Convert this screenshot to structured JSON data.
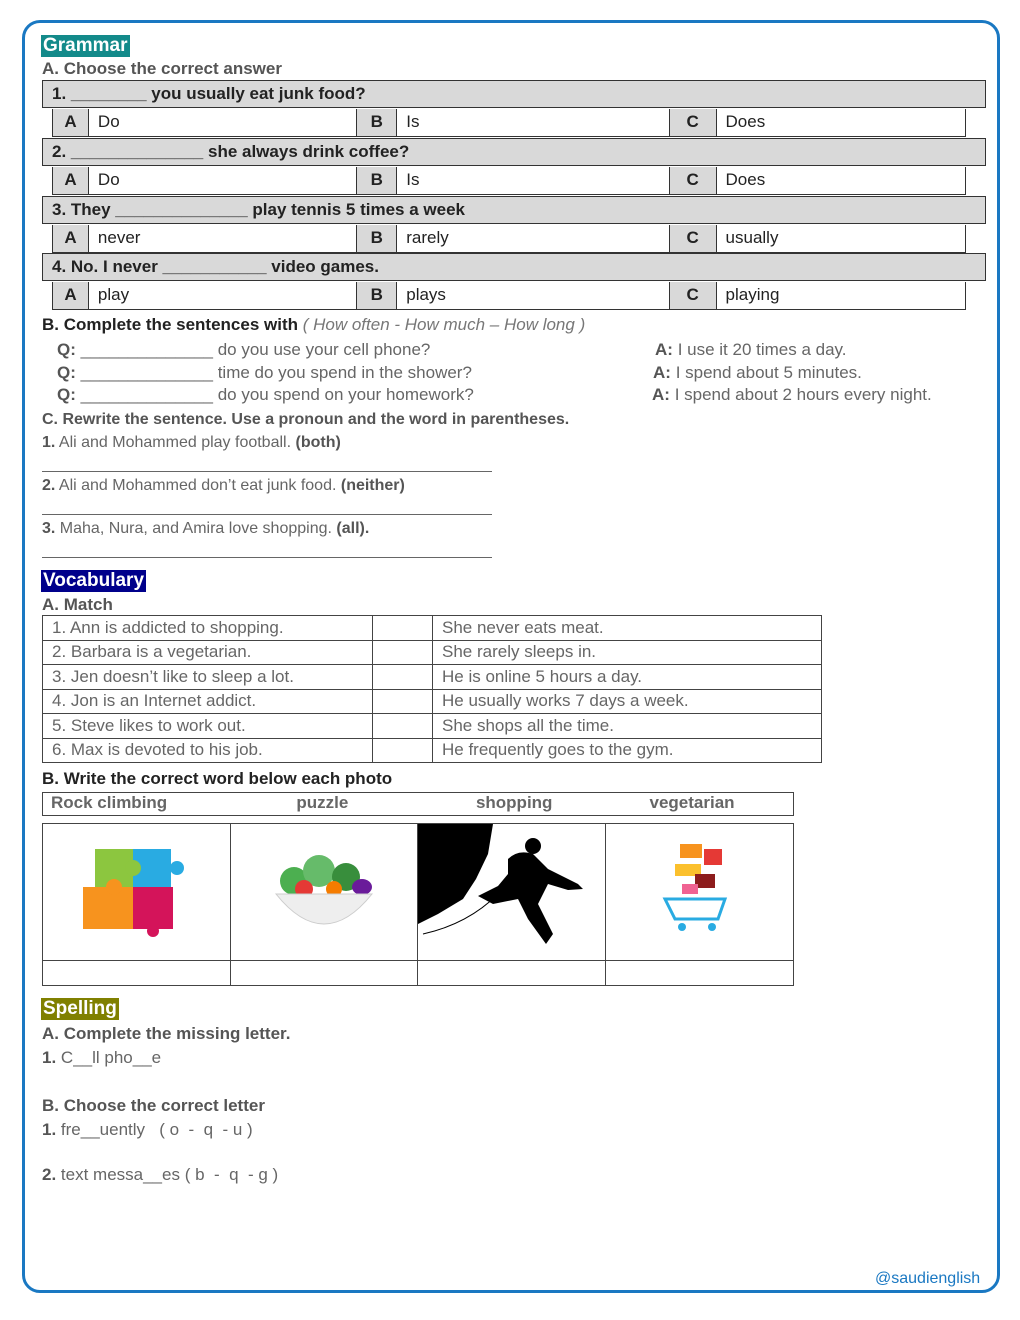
{
  "colors": {
    "frame": "#1a78c2",
    "grammar_tag": "#138a8a",
    "vocabulary_tag": "#00008b",
    "spelling_tag": "#808000",
    "footer": "#1a78c2"
  },
  "grammar": {
    "tag": "Grammar",
    "sectionA": {
      "title": "A. Choose the correct answer",
      "questions": [
        {
          "q": "1. ________ you usually eat junk food?",
          "options": [
            {
              "letter": "A",
              "text": "Do"
            },
            {
              "letter": "B",
              "text": "Is"
            },
            {
              "letter": "C",
              "text": "Does"
            }
          ]
        },
        {
          "q": "2. ______________ she always drink coffee?",
          "options": [
            {
              "letter": "A",
              "text": "Do"
            },
            {
              "letter": "B",
              "text": "Is"
            },
            {
              "letter": "C",
              "text": "Does"
            }
          ]
        },
        {
          "q": "3. They ______________ play tennis 5 times a week",
          "options": [
            {
              "letter": "A",
              "text": "never"
            },
            {
              "letter": "B",
              "text": "rarely"
            },
            {
              "letter": "C",
              "text": "usually"
            }
          ]
        },
        {
          "q": "4. No. I never ___________ video games.",
          "options": [
            {
              "letter": "A",
              "text": "play"
            },
            {
              "letter": "B",
              "text": "plays"
            },
            {
              "letter": "C",
              "text": "playing"
            }
          ]
        }
      ]
    },
    "sectionB": {
      "title": "B.  Complete the sentences with ",
      "choices": "( How often - How much – How long )",
      "items": [
        {
          "q": "Q:",
          "text": "______________ do you use your cell phone?",
          "a": "A:",
          "answer": "I use it 20 times a day."
        },
        {
          "q": "Q:",
          "text": "______________ time do you spend in the shower?",
          "a": "A:",
          "answer": "I spend about 5 minutes."
        },
        {
          "q": "Q:",
          "text": "______________ do you spend on your homework?",
          "a": "A:",
          "answer": "I spend about 2 hours every night."
        }
      ]
    },
    "sectionC": {
      "title": "C. Rewrite the sentence. Use a pronoun and the word in parentheses.",
      "items": [
        {
          "num": "1.",
          "text": " Ali and Mohammed play football. ",
          "hint": "(both)"
        },
        {
          "num": "2.",
          "text": " Ali and Mohammed don’t eat junk food. ",
          "hint": "(neither)"
        },
        {
          "num": "3.",
          "text": " Maha, Nura, and Amira love shopping. ",
          "hint": "(all)."
        }
      ]
    }
  },
  "vocabulary": {
    "tag": "Vocabulary",
    "match": {
      "title": "A. Match",
      "rows": [
        {
          "left": "1. Ann is addicted to shopping.",
          "right": "She never eats meat."
        },
        {
          "left": "2. Barbara is a vegetarian.",
          "right": "She rarely sleeps in."
        },
        {
          "left": "3. Jen doesn’t like to sleep a lot.",
          "right": " He is online 5 hours a day."
        },
        {
          "left": "4. Jon is an Internet addict.",
          "right": "He usually works 7 days a week."
        },
        {
          "left": "5. Steve likes to work out.",
          "right": "She shops all the time."
        },
        {
          "left": "6. Max is devoted to his job.",
          "right": "He frequently goes to the gym."
        }
      ]
    },
    "photos": {
      "title": "B. Write the correct word below each photo",
      "words": [
        "Rock climbing",
        "puzzle",
        "shopping",
        "vegetarian"
      ],
      "images": [
        "puzzle",
        "salad bowl",
        "rock climber",
        "shopping cart"
      ]
    }
  },
  "spelling": {
    "tag": "Spelling",
    "sectionA": {
      "title": "A. Complete the missing letter.",
      "num": "1.",
      "text": " C__ll pho__e"
    },
    "sectionB": {
      "title": "B. Choose the correct letter",
      "items": [
        {
          "num": "1.",
          "text": " fre__uently   ",
          "choices": "( o  -  q  - u )"
        },
        {
          "num": "2.",
          "text": " text messa__es ",
          "choices": "( b  -  q  - g )"
        }
      ]
    }
  },
  "footer": "@saudienglish"
}
